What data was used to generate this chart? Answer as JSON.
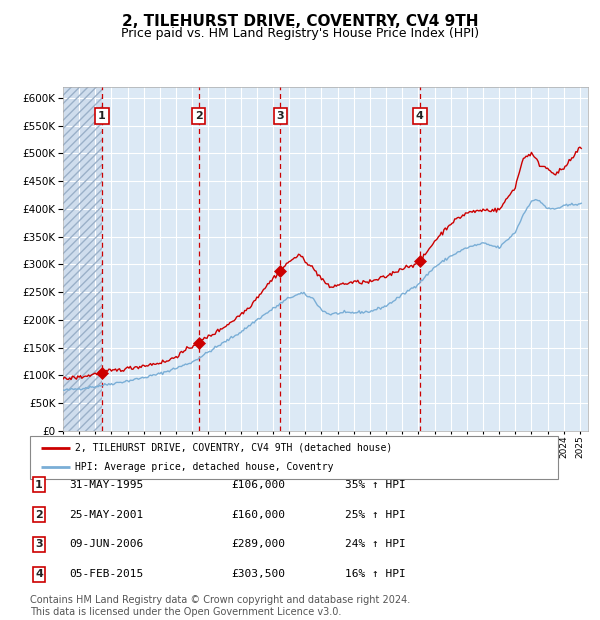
{
  "title": "2, TILEHURST DRIVE, COVENTRY, CV4 9TH",
  "subtitle": "Price paid vs. HM Land Registry's House Price Index (HPI)",
  "title_fontsize": 11,
  "subtitle_fontsize": 9,
  "background_color": "#ffffff",
  "plot_bg_color": "#dce9f5",
  "grid_color": "#ffffff",
  "red_line_color": "#cc0000",
  "blue_line_color": "#7aaed6",
  "sale_marker_color": "#cc0000",
  "dashed_line_color": "#cc0000",
  "legend_line1": "2, TILEHURST DRIVE, COVENTRY, CV4 9TH (detached house)",
  "legend_line2": "HPI: Average price, detached house, Coventry",
  "sales": [
    {
      "num": 1,
      "date": "31-MAY-1995",
      "price": 106000,
      "pct": "35%",
      "x_year": 1995.41
    },
    {
      "num": 2,
      "date": "25-MAY-2001",
      "price": 160000,
      "pct": "25%",
      "x_year": 2001.4
    },
    {
      "num": 3,
      "date": "09-JUN-2006",
      "price": 289000,
      "pct": "24%",
      "x_year": 2006.44
    },
    {
      "num": 4,
      "date": "05-FEB-2015",
      "price": 303500,
      "pct": "16%",
      "x_year": 2015.09
    }
  ],
  "ylim": [
    0,
    620000
  ],
  "yticks": [
    0,
    50000,
    100000,
    150000,
    200000,
    250000,
    300000,
    350000,
    400000,
    450000,
    500000,
    550000,
    600000
  ],
  "xlim_start": 1993.0,
  "xlim_end": 2025.5,
  "footer": "Contains HM Land Registry data © Crown copyright and database right 2024.\nThis data is licensed under the Open Government Licence v3.0.",
  "footer_fontsize": 7,
  "hpi_anchors_x": [
    1993.0,
    1994.0,
    1995.0,
    1996.0,
    1997.0,
    1998.0,
    1999.0,
    2000.0,
    2001.0,
    2002.0,
    2003.0,
    2004.0,
    2005.0,
    2006.0,
    2007.0,
    2007.8,
    2008.5,
    2009.0,
    2009.5,
    2010.0,
    2011.0,
    2012.0,
    2013.0,
    2014.0,
    2015.0,
    2016.0,
    2017.0,
    2018.0,
    2019.0,
    2020.0,
    2021.0,
    2021.5,
    2022.0,
    2022.5,
    2023.0,
    2023.5,
    2024.0,
    2025.0
  ],
  "hpi_anchors_y": [
    73000,
    76000,
    80000,
    85000,
    90000,
    96000,
    103000,
    113000,
    124000,
    142000,
    160000,
    178000,
    200000,
    220000,
    240000,
    248000,
    238000,
    218000,
    210000,
    212000,
    213000,
    215000,
    225000,
    245000,
    265000,
    295000,
    315000,
    330000,
    338000,
    330000,
    358000,
    390000,
    415000,
    415000,
    400000,
    400000,
    405000,
    410000
  ],
  "red_anchors_x": [
    1993.0,
    1994.5,
    1995.41,
    1996.5,
    1997.5,
    1998.5,
    1999.5,
    2000.5,
    2001.4,
    2002.5,
    2003.5,
    2004.5,
    2005.5,
    2006.44,
    2007.2,
    2007.7,
    2008.5,
    2009.5,
    2010.0,
    2011.0,
    2012.0,
    2013.0,
    2014.0,
    2015.09,
    2016.0,
    2017.0,
    2018.0,
    2019.0,
    2020.0,
    2021.0,
    2021.5,
    2022.0,
    2022.5,
    2023.0,
    2023.5,
    2024.0,
    2024.5,
    2025.0
  ],
  "red_anchors_y": [
    93000,
    99000,
    106000,
    110000,
    115000,
    120000,
    126000,
    143000,
    160000,
    178000,
    198000,
    222000,
    258000,
    289000,
    310000,
    316000,
    292000,
    258000,
    263000,
    268000,
    268000,
    278000,
    293000,
    303500,
    342000,
    374000,
    393000,
    398000,
    398000,
    440000,
    492000,
    500000,
    480000,
    473000,
    463000,
    473000,
    490000,
    510000
  ]
}
